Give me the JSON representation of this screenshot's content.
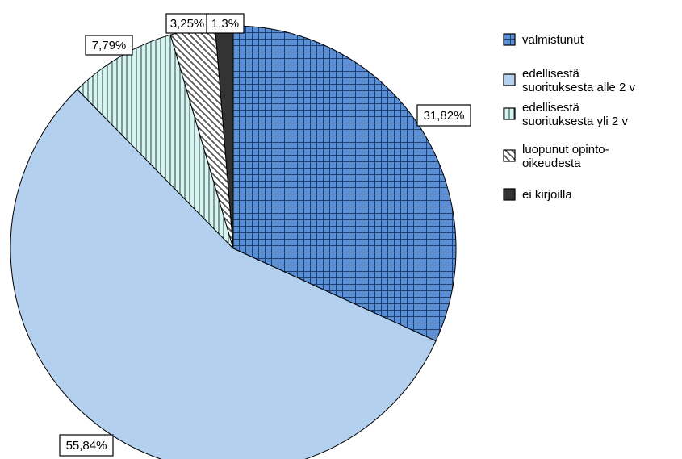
{
  "chart_data": {
    "type": "pie",
    "slices": [
      {
        "label": "valmistunut",
        "value": 31.82,
        "display": "31,82%",
        "color": "#5b8fd6",
        "pattern": "grid"
      },
      {
        "label": "edellisestä suorituksesta alle 2 v",
        "value": 55.84,
        "display": "55,84%",
        "color": "#b3d1ef",
        "pattern": "solid"
      },
      {
        "label": "edellisestä suorituksesta yli 2 v",
        "value": 7.79,
        "display": "7,79%",
        "color": "#d6f5f2",
        "pattern": "vertical"
      },
      {
        "label": "luopunut opinto-oikeudesta",
        "value": 3.25,
        "display": "3,25%",
        "color": "#ffffff",
        "pattern": "diagonal"
      },
      {
        "label": "ei kirjoilla",
        "value": 1.3,
        "display": "1,3%",
        "color": "#333333",
        "pattern": "solid"
      }
    ],
    "legend": {
      "placement": "right",
      "entries": [
        {
          "lines": [
            "valmistunut"
          ]
        },
        {
          "lines": [
            "edellisestä",
            "suorituksesta alle 2 v"
          ]
        },
        {
          "lines": [
            "edellisestä",
            "suorituksesta yli 2 v"
          ]
        },
        {
          "lines": [
            "luopunut opinto-",
            "oikeudesta"
          ]
        },
        {
          "lines": [
            "ei kirjoilla"
          ]
        }
      ]
    }
  }
}
